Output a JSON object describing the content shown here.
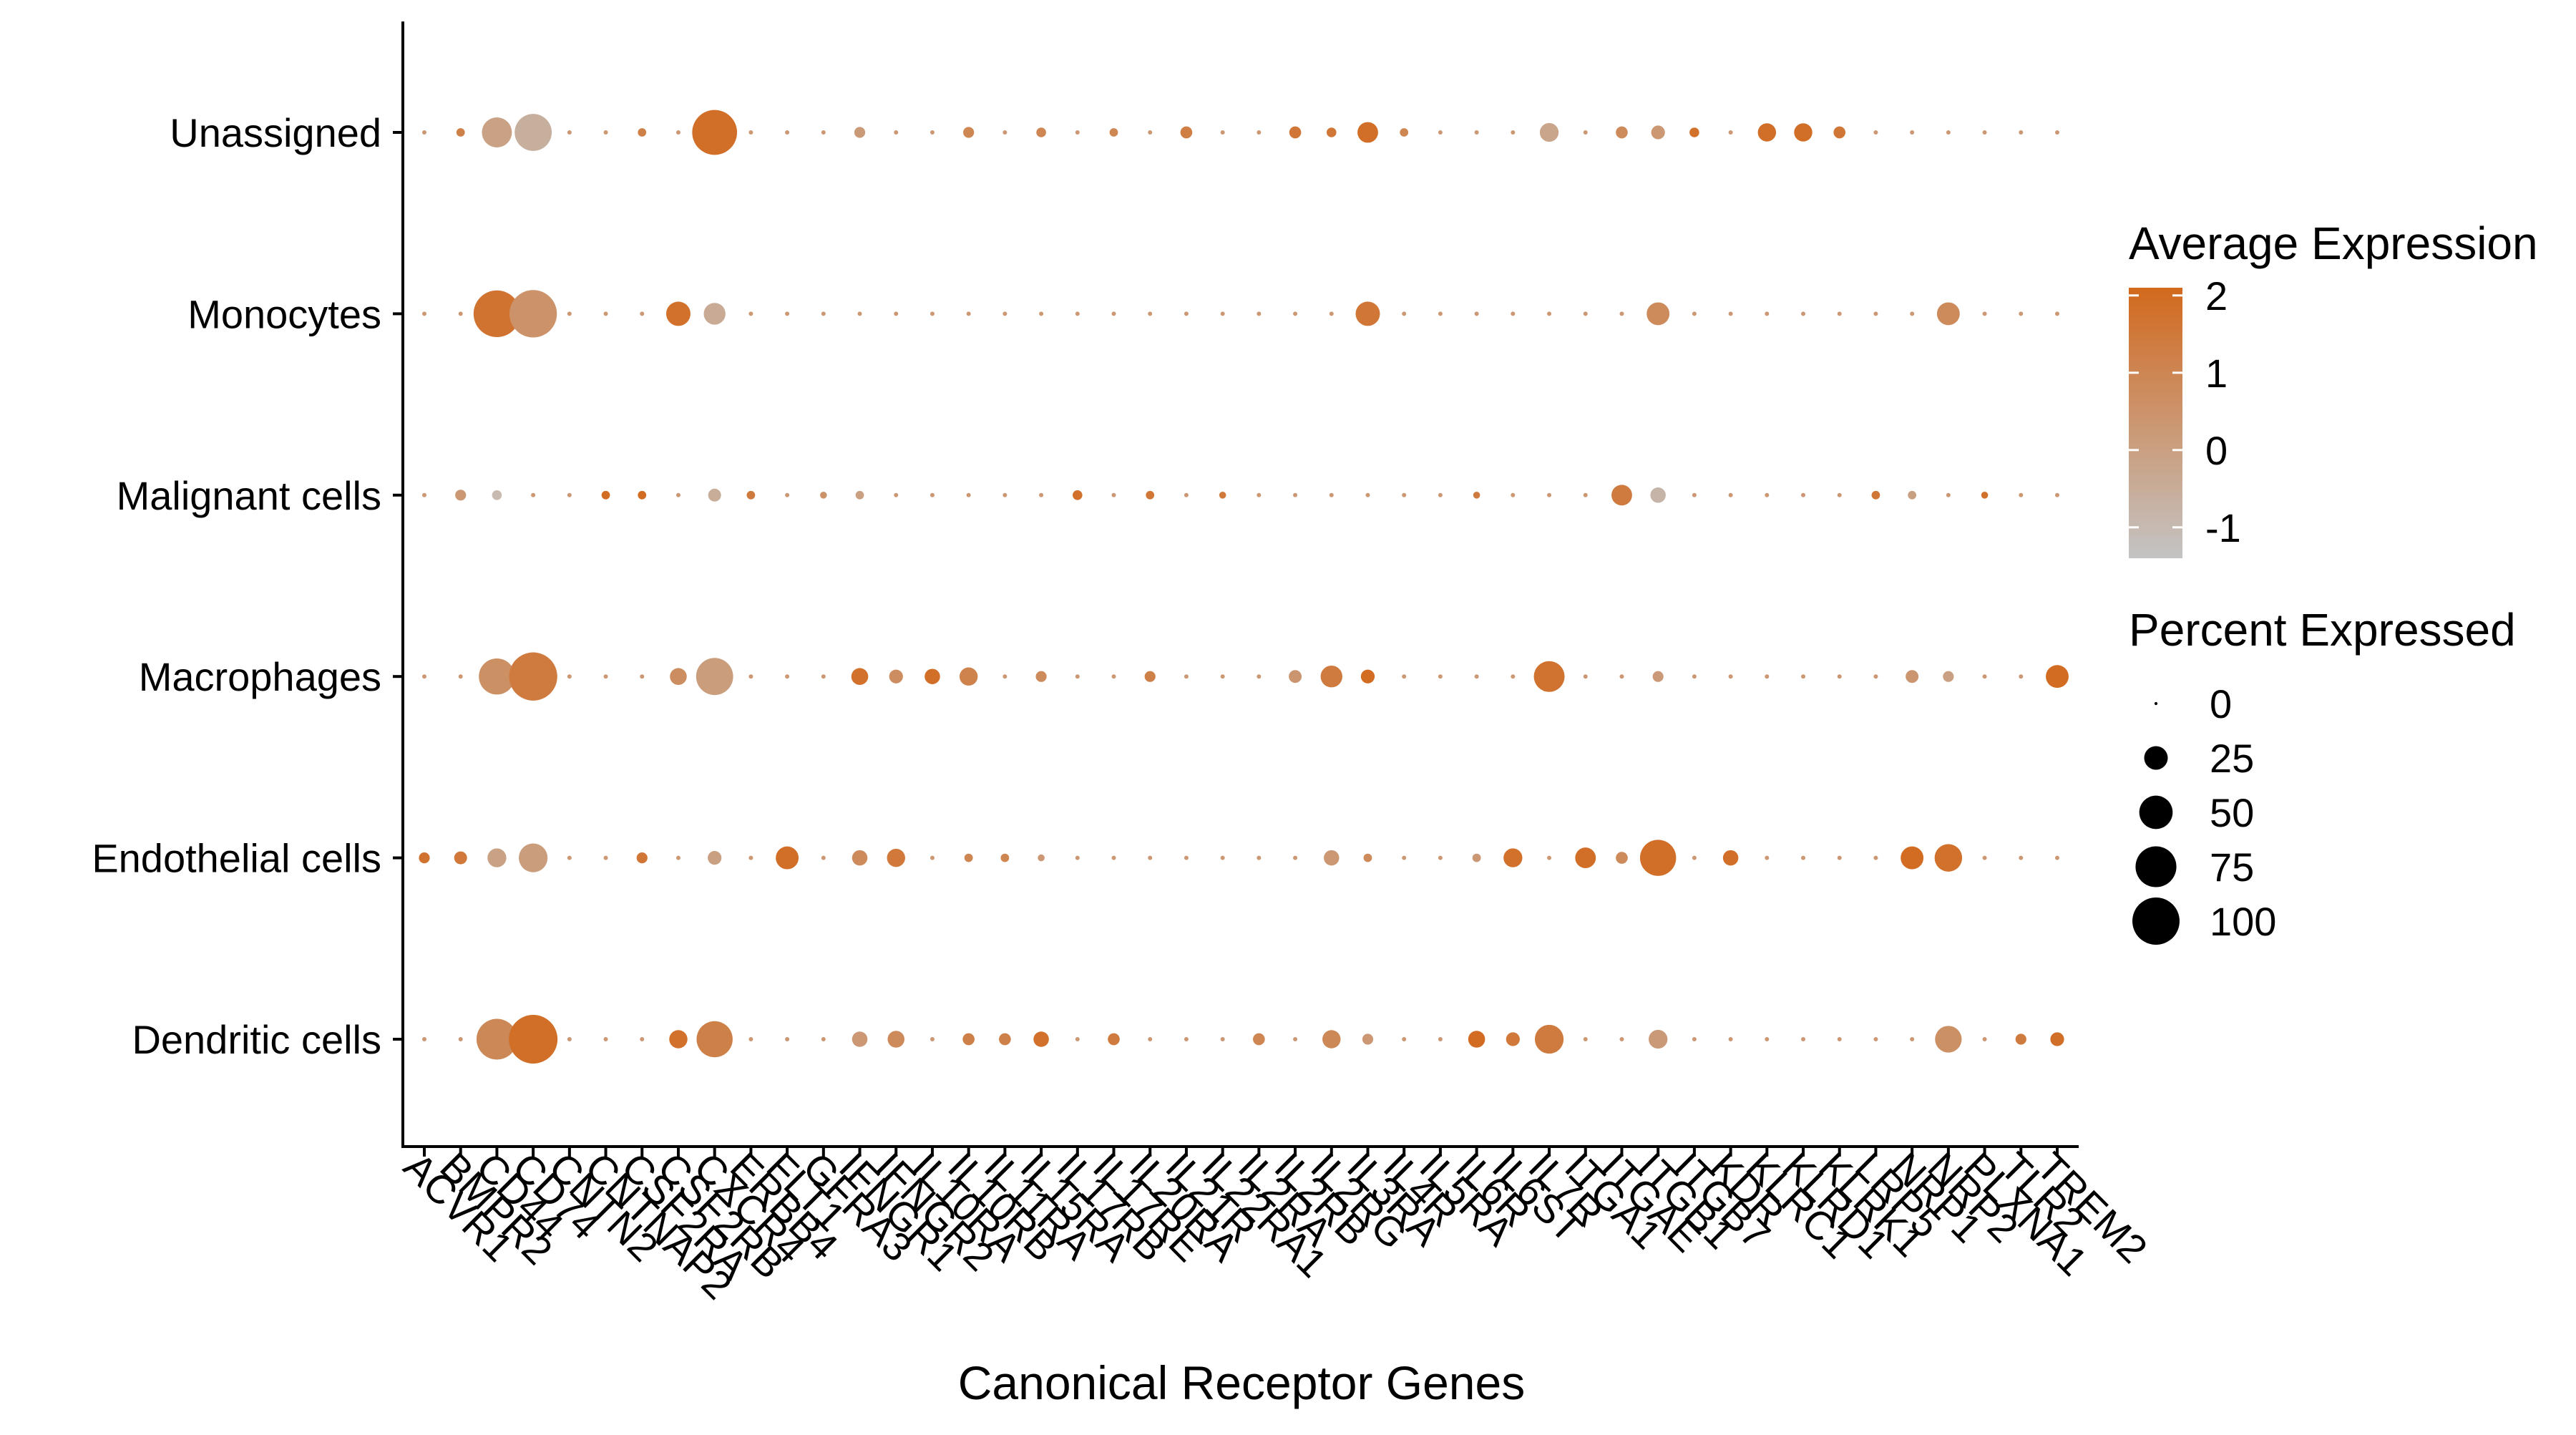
{
  "chart_data": {
    "type": "scatter",
    "subtype": "dot-plot",
    "xlabel": "Canonical Receptor Genes",
    "ylabel": "",
    "genes": [
      "ACVR1",
      "BMPR2",
      "CD44",
      "CD74",
      "CNTN2",
      "CNTNAP2",
      "CSF2RA",
      "CSF2RB",
      "CXCR4",
      "ERBB4",
      "FLT1",
      "GFRA3",
      "IFNGR1",
      "IFNGR2",
      "IL10RA",
      "IL10RB",
      "IL11RA",
      "IL15RA",
      "IL17RB",
      "IL17RE",
      "IL20RA",
      "IL21R",
      "IL22RA1",
      "IL2RA",
      "IL2RB",
      "IL2RG",
      "IL3RA",
      "IL4R",
      "IL5RA",
      "IL6R",
      "IL6ST",
      "IL7R",
      "ITGA1",
      "ITGAE",
      "ITGB1",
      "ITGB7",
      "KDR",
      "KLRC1",
      "KLRD1",
      "KLRK1",
      "LRP5",
      "NRP1",
      "NRP2",
      "PLXNA1",
      "TLR2",
      "TREM2"
    ],
    "cell_types": [
      "Dendritic cells",
      "Endothelial cells",
      "Macrophages",
      "Malignant cells",
      "Monocytes",
      "Unassigned"
    ],
    "color_scale": {
      "title": "Average Expression",
      "ticks": [
        "2",
        "1",
        "0",
        "-1"
      ],
      "range": [
        -1.4,
        2.1
      ],
      "low_color": "#c4c4c4",
      "high_color": "#d2691e"
    },
    "size_scale": {
      "title": "Percent Expressed",
      "ticks": [
        "0",
        "25",
        "50",
        "75",
        "100"
      ],
      "values": [
        0,
        25,
        50,
        75,
        100
      ]
    },
    "grid": false,
    "legend_position": "right",
    "points": [
      {
        "cell": "Unassigned",
        "gene": "BMPR2",
        "pct": 3,
        "avg": 1.2
      },
      {
        "cell": "Unassigned",
        "gene": "CD44",
        "pct": 38,
        "avg": -0.1
      },
      {
        "cell": "Unassigned",
        "gene": "CD74",
        "pct": 58,
        "avg": -0.6
      },
      {
        "cell": "Unassigned",
        "gene": "CSF2RA",
        "pct": 3,
        "avg": 1.2
      },
      {
        "cell": "Unassigned",
        "gene": "CXCR4",
        "pct": 85,
        "avg": 1.9
      },
      {
        "cell": "Unassigned",
        "gene": "IFNGR1",
        "pct": 5,
        "avg": 0.2
      },
      {
        "cell": "Unassigned",
        "gene": "IL10RB",
        "pct": 5,
        "avg": 1.0
      },
      {
        "cell": "Unassigned",
        "gene": "IL15RA",
        "pct": 4,
        "avg": 1.0
      },
      {
        "cell": "Unassigned",
        "gene": "IL17RE",
        "pct": 3,
        "avg": 1.0
      },
      {
        "cell": "Unassigned",
        "gene": "IL21R",
        "pct": 6,
        "avg": 1.3
      },
      {
        "cell": "Unassigned",
        "gene": "IL2RB",
        "pct": 6,
        "avg": 1.6
      },
      {
        "cell": "Unassigned",
        "gene": "IL2RG",
        "pct": 4,
        "avg": 1.6
      },
      {
        "cell": "Unassigned",
        "gene": "IL3RA",
        "pct": 18,
        "avg": 1.9
      },
      {
        "cell": "Unassigned",
        "gene": "IL4R",
        "pct": 3,
        "avg": 1.0
      },
      {
        "cell": "Unassigned",
        "gene": "IL7R",
        "pct": 15,
        "avg": -0.2
      },
      {
        "cell": "Unassigned",
        "gene": "ITGAE",
        "pct": 6,
        "avg": 0.8
      },
      {
        "cell": "Unassigned",
        "gene": "ITGB1",
        "pct": 8,
        "avg": 0.3
      },
      {
        "cell": "Unassigned",
        "gene": "ITGB7",
        "pct": 4,
        "avg": 1.8
      },
      {
        "cell": "Unassigned",
        "gene": "KLRC1",
        "pct": 14,
        "avg": 1.9
      },
      {
        "cell": "Unassigned",
        "gene": "KLRD1",
        "pct": 14,
        "avg": 1.9
      },
      {
        "cell": "Unassigned",
        "gene": "KLRK1",
        "pct": 6,
        "avg": 1.6
      },
      {
        "cell": "Monocytes",
        "gene": "CD44",
        "pct": 92,
        "avg": 1.7
      },
      {
        "cell": "Monocytes",
        "gene": "CD74",
        "pct": 95,
        "avg": 0.5
      },
      {
        "cell": "Monocytes",
        "gene": "CSF2RB",
        "pct": 25,
        "avg": 1.8
      },
      {
        "cell": "Monocytes",
        "gene": "CXCR4",
        "pct": 20,
        "avg": -0.4
      },
      {
        "cell": "Monocytes",
        "gene": "IL3RA",
        "pct": 25,
        "avg": 1.6
      },
      {
        "cell": "Monocytes",
        "gene": "ITGB1",
        "pct": 22,
        "avg": 0.8
      },
      {
        "cell": "Monocytes",
        "gene": "NRP2",
        "pct": 22,
        "avg": 0.8
      },
      {
        "cell": "Malignant cells",
        "gene": "BMPR2",
        "pct": 5,
        "avg": 0.3
      },
      {
        "cell": "Malignant cells",
        "gene": "CD44",
        "pct": 4,
        "avg": -1.0
      },
      {
        "cell": "Malignant cells",
        "gene": "CNTNAP2",
        "pct": 3,
        "avg": 2.0
      },
      {
        "cell": "Malignant cells",
        "gene": "CSF2RA",
        "pct": 3,
        "avg": 2.0
      },
      {
        "cell": "Malignant cells",
        "gene": "CXCR4",
        "pct": 7,
        "avg": -0.5
      },
      {
        "cell": "Malignant cells",
        "gene": "ERBB4",
        "pct": 3,
        "avg": 1.4
      },
      {
        "cell": "Malignant cells",
        "gene": "GFRA3",
        "pct": 2,
        "avg": 0.5
      },
      {
        "cell": "Malignant cells",
        "gene": "IFNGR1",
        "pct": 3,
        "avg": 0.0
      },
      {
        "cell": "Malignant cells",
        "gene": "IL17RB",
        "pct": 4,
        "avg": 1.8
      },
      {
        "cell": "Malignant cells",
        "gene": "IL20RA",
        "pct": 3,
        "avg": 1.6
      },
      {
        "cell": "Malignant cells",
        "gene": "IL22RA1",
        "pct": 2,
        "avg": 1.5
      },
      {
        "cell": "Malignant cells",
        "gene": "IL6R",
        "pct": 2,
        "avg": 1.4
      },
      {
        "cell": "Malignant cells",
        "gene": "ITGAE",
        "pct": 18,
        "avg": 1.4
      },
      {
        "cell": "Malignant cells",
        "gene": "ITGB1",
        "pct": 10,
        "avg": -0.8
      },
      {
        "cell": "Malignant cells",
        "gene": "LRP5",
        "pct": 3,
        "avg": 1.6
      },
      {
        "cell": "Malignant cells",
        "gene": "NRP1",
        "pct": 3,
        "avg": 0.0
      },
      {
        "cell": "Malignant cells",
        "gene": "PLXNA1",
        "pct": 2,
        "avg": 1.8
      },
      {
        "cell": "Macrophages",
        "gene": "CD44",
        "pct": 55,
        "avg": 0.6
      },
      {
        "cell": "Macrophages",
        "gene": "CD74",
        "pct": 98,
        "avg": 1.4
      },
      {
        "cell": "Macrophages",
        "gene": "CSF2RB",
        "pct": 12,
        "avg": 0.7
      },
      {
        "cell": "Macrophages",
        "gene": "CXCR4",
        "pct": 58,
        "avg": 0.1
      },
      {
        "cell": "Macrophages",
        "gene": "IFNGR1",
        "pct": 12,
        "avg": 1.8
      },
      {
        "cell": "Macrophages",
        "gene": "IFNGR2",
        "pct": 8,
        "avg": 0.7
      },
      {
        "cell": "Macrophages",
        "gene": "IL10RA",
        "pct": 10,
        "avg": 1.9
      },
      {
        "cell": "Macrophages",
        "gene": "IL10RB",
        "pct": 14,
        "avg": 1.1
      },
      {
        "cell": "Macrophages",
        "gene": "IL15RA",
        "pct": 5,
        "avg": 0.8
      },
      {
        "cell": "Macrophages",
        "gene": "IL20RA",
        "pct": 5,
        "avg": 1.2
      },
      {
        "cell": "Macrophages",
        "gene": "IL2RB",
        "pct": 7,
        "avg": 0.4
      },
      {
        "cell": "Macrophages",
        "gene": "IL2RG",
        "pct": 20,
        "avg": 1.4
      },
      {
        "cell": "Macrophages",
        "gene": "IL3RA",
        "pct": 8,
        "avg": 2.0
      },
      {
        "cell": "Macrophages",
        "gene": "IL7R",
        "pct": 40,
        "avg": 1.7
      },
      {
        "cell": "Macrophages",
        "gene": "ITGB1",
        "pct": 5,
        "avg": 0.2
      },
      {
        "cell": "Macrophages",
        "gene": "NRP1",
        "pct": 7,
        "avg": 0.4
      },
      {
        "cell": "Macrophages",
        "gene": "NRP2",
        "pct": 5,
        "avg": 0.0
      },
      {
        "cell": "Macrophages",
        "gene": "TREM2",
        "pct": 22,
        "avg": 2.0
      },
      {
        "cell": "Endothelial cells",
        "gene": "ACVR1",
        "pct": 5,
        "avg": 1.7
      },
      {
        "cell": "Endothelial cells",
        "gene": "BMPR2",
        "pct": 7,
        "avg": 1.5
      },
      {
        "cell": "Endothelial cells",
        "gene": "CD44",
        "pct": 15,
        "avg": -0.1
      },
      {
        "cell": "Endothelial cells",
        "gene": "CD74",
        "pct": 35,
        "avg": 0.1
      },
      {
        "cell": "Endothelial cells",
        "gene": "CSF2RA",
        "pct": 5,
        "avg": 1.6
      },
      {
        "cell": "Endothelial cells",
        "gene": "CXCR4",
        "pct": 8,
        "avg": 0.0
      },
      {
        "cell": "Endothelial cells",
        "gene": "FLT1",
        "pct": 22,
        "avg": 1.9
      },
      {
        "cell": "Endothelial cells",
        "gene": "IFNGR1",
        "pct": 10,
        "avg": 0.8
      },
      {
        "cell": "Endothelial cells",
        "gene": "IFNGR2",
        "pct": 14,
        "avg": 1.5
      },
      {
        "cell": "Endothelial cells",
        "gene": "IL10RB",
        "pct": 3,
        "avg": 1.0
      },
      {
        "cell": "Endothelial cells",
        "gene": "IL11RA",
        "pct": 3,
        "avg": 1.0
      },
      {
        "cell": "Endothelial cells",
        "gene": "IL15RA",
        "pct": 2,
        "avg": 0.3
      },
      {
        "cell": "Endothelial cells",
        "gene": "IL2RG",
        "pct": 10,
        "avg": 0.3
      },
      {
        "cell": "Endothelial cells",
        "gene": "IL3RA",
        "pct": 3,
        "avg": 0.8
      },
      {
        "cell": "Endothelial cells",
        "gene": "IL6R",
        "pct": 3,
        "avg": 0.3
      },
      {
        "cell": "Endothelial cells",
        "gene": "IL6ST",
        "pct": 15,
        "avg": 1.8
      },
      {
        "cell": "Endothelial cells",
        "gene": "ITGA1",
        "pct": 18,
        "avg": 1.9
      },
      {
        "cell": "Endothelial cells",
        "gene": "ITGAE",
        "pct": 6,
        "avg": 0.8
      },
      {
        "cell": "Endothelial cells",
        "gene": "ITGB1",
        "pct": 55,
        "avg": 1.9
      },
      {
        "cell": "Endothelial cells",
        "gene": "KDR",
        "pct": 10,
        "avg": 1.9
      },
      {
        "cell": "Endothelial cells",
        "gene": "NRP1",
        "pct": 22,
        "avg": 2.0
      },
      {
        "cell": "Endothelial cells",
        "gene": "NRP2",
        "pct": 32,
        "avg": 1.8
      },
      {
        "cell": "Dendritic cells",
        "gene": "CD44",
        "pct": 70,
        "avg": 0.9
      },
      {
        "cell": "Dendritic cells",
        "gene": "CD74",
        "pct": 100,
        "avg": 1.9
      },
      {
        "cell": "Dendritic cells",
        "gene": "CSF2RB",
        "pct": 14,
        "avg": 1.8
      },
      {
        "cell": "Dendritic cells",
        "gene": "CXCR4",
        "pct": 55,
        "avg": 1.2
      },
      {
        "cell": "Dendritic cells",
        "gene": "IFNGR1",
        "pct": 10,
        "avg": 0.3
      },
      {
        "cell": "Dendritic cells",
        "gene": "IFNGR2",
        "pct": 12,
        "avg": 0.8
      },
      {
        "cell": "Dendritic cells",
        "gene": "IL10RB",
        "pct": 6,
        "avg": 1.2
      },
      {
        "cell": "Dendritic cells",
        "gene": "IL11RA",
        "pct": 6,
        "avg": 1.2
      },
      {
        "cell": "Dendritic cells",
        "gene": "IL15RA",
        "pct": 10,
        "avg": 1.8
      },
      {
        "cell": "Dendritic cells",
        "gene": "IL17RE",
        "pct": 6,
        "avg": 1.4
      },
      {
        "cell": "Dendritic cells",
        "gene": "IL2RA",
        "pct": 6,
        "avg": 1.0
      },
      {
        "cell": "Dendritic cells",
        "gene": "IL2RG",
        "pct": 14,
        "avg": 0.9
      },
      {
        "cell": "Dendritic cells",
        "gene": "IL3RA",
        "pct": 5,
        "avg": 0.3
      },
      {
        "cell": "Dendritic cells",
        "gene": "IL6R",
        "pct": 12,
        "avg": 2.0
      },
      {
        "cell": "Dendritic cells",
        "gene": "IL6ST",
        "pct": 8,
        "avg": 1.5
      },
      {
        "cell": "Dendritic cells",
        "gene": "IL7R",
        "pct": 35,
        "avg": 1.4
      },
      {
        "cell": "Dendritic cells",
        "gene": "ITGB1",
        "pct": 15,
        "avg": 0.2
      },
      {
        "cell": "Dendritic cells",
        "gene": "NRP2",
        "pct": 30,
        "avg": 0.6
      },
      {
        "cell": "Dendritic cells",
        "gene": "TLR2",
        "pct": 5,
        "avg": 1.4
      },
      {
        "cell": "Dendritic cells",
        "gene": "TREM2",
        "pct": 8,
        "avg": 1.9
      }
    ]
  }
}
